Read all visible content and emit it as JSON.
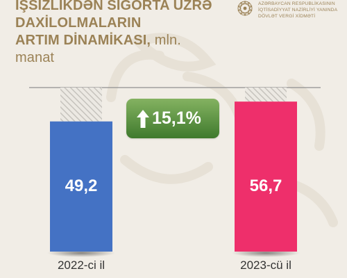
{
  "header": {
    "title_lines": [
      "İŞSİZLİKDƏN SIĞORTA ÜZRƏ",
      "DAXİLOLMALARIN"
    ],
    "title_last_bold": "ARTIM DİNAMİKASI,",
    "title_unit": "mln. manat"
  },
  "organization": {
    "lines": [
      "AZƏRBAYCAN RESPUBLİKASININ",
      "İQTİSADİYYAT NAZİRLİYİ YANINDA",
      "DÖVLƏT VERGİ XİDMƏTİ"
    ],
    "logo_icon": "state-emblem-icon"
  },
  "growth_badge": {
    "icon": "arrow-up-icon",
    "label": "15,1%"
  },
  "colors": {
    "background": "#f1ede6",
    "title": "#9b8256",
    "bar_2022": "#4472c4",
    "bar_2023": "#ee2f6b",
    "growth": "#5a9440"
  },
  "chart_data": {
    "type": "bar",
    "categories": [
      "2022-ci il",
      "2023-cü il"
    ],
    "values": [
      49.2,
      56.7
    ],
    "value_labels": [
      "49,2",
      "56,7"
    ],
    "colors": [
      "#4472c4",
      "#ee2f6b"
    ],
    "ylim": [
      0,
      62
    ],
    "grid": false,
    "legend": "none"
  }
}
